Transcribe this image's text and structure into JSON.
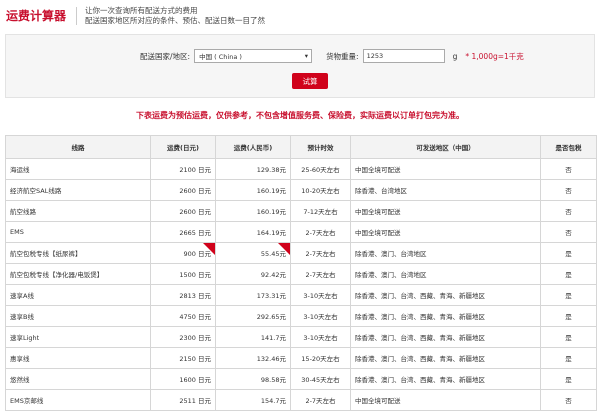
{
  "header": {
    "title": "运费计算器",
    "subtitle_lines": [
      "让你一次查询所有配送方式的费用",
      "配送国家地区所对应的条件、预估、配送日数一目了然"
    ]
  },
  "form": {
    "country_label": "配送国家/地区:",
    "country_value": "中国 ( China )",
    "weight_label": "货物重量:",
    "weight_value": "1253",
    "weight_unit": "g",
    "weight_note": "* 1,000g=1千克",
    "button": "试算"
  },
  "note": "下表运费为预估运费，仅供参考，不包含增值服务费、保险费，实际运费以订单打包完为准。",
  "table": {
    "header": [
      "线路",
      "运费(日元)",
      "运费(人民币)",
      "预计时效",
      "可发送地区（中国）",
      "是否包税"
    ],
    "rows": [
      [
        "海运线",
        "2100 日元",
        "129.38元",
        "25-60天左右",
        "中国全境可配送",
        "否"
      ],
      [
        "经济航空SAL线路",
        "2600 日元",
        "160.19元",
        "10-20天左右",
        "除香港、台湾地区",
        "否"
      ],
      [
        "航空线路",
        "2600 日元",
        "160.19元",
        "7-12天左右",
        "中国全境可配送",
        "否"
      ],
      [
        "EMS",
        "2665 日元",
        "164.19元",
        "2-7天左右",
        "中国全境可配送",
        "否"
      ],
      [
        "航空包税专线【纸尿裤】",
        "900 日元",
        "55.45元",
        "2-7天左右",
        "除香港、澳门、台湾地区",
        "是"
      ],
      [
        "航空包税专线【净化器/电饭煲】",
        "1500 日元",
        "92.42元",
        "2-7天左右",
        "除香港、澳门、台湾地区",
        "是"
      ],
      [
        "速享A线",
        "2813 日元",
        "173.31元",
        "3-10天左右",
        "除香港、澳门、台湾、西藏、青海、新疆地区",
        "是"
      ],
      [
        "速享B线",
        "4750 日元",
        "292.65元",
        "3-10天左右",
        "除香港、澳门、台湾、西藏、青海、新疆地区",
        "是"
      ],
      [
        "速享Light",
        "2300 日元",
        "141.7元",
        "3-10天左右",
        "除香港、澳门、台湾、西藏、青海、新疆地区",
        "是"
      ],
      [
        "惠享线",
        "2150 日元",
        "132.46元",
        "15-20天左右",
        "除香港、澳门、台湾、西藏、青海、新疆地区",
        "是"
      ],
      [
        "悠然线",
        "1600 日元",
        "98.58元",
        "30-45天左右",
        "除香港、澳门、台湾、西藏、青海、新疆地区",
        "是"
      ],
      [
        "EMS京邮线",
        "2511 日元",
        "154.7元",
        "2-7天左右",
        "中国全境可配送",
        "否"
      ]
    ]
  }
}
